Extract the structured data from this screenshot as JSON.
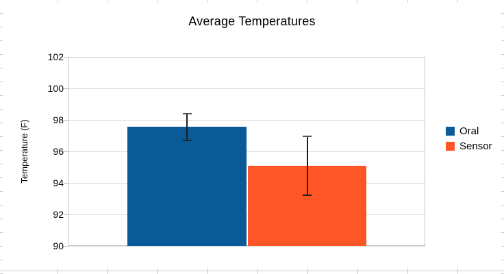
{
  "chart_data": {
    "type": "bar",
    "title": "Average Temperatures",
    "ylabel": "Temperature (F)",
    "ylim": [
      90,
      102
    ],
    "yticks": [
      102,
      100,
      98,
      96,
      94,
      92,
      90
    ],
    "grid": true,
    "legend_position": "right",
    "series": [
      {
        "name": "Oral",
        "value": 97.55,
        "error_high": 98.4,
        "error_low": 96.7,
        "color": "#0a5a98"
      },
      {
        "name": "Sensor",
        "value": 95.1,
        "error_high": 96.95,
        "error_low": 93.2,
        "color": "#ff5628"
      }
    ]
  }
}
